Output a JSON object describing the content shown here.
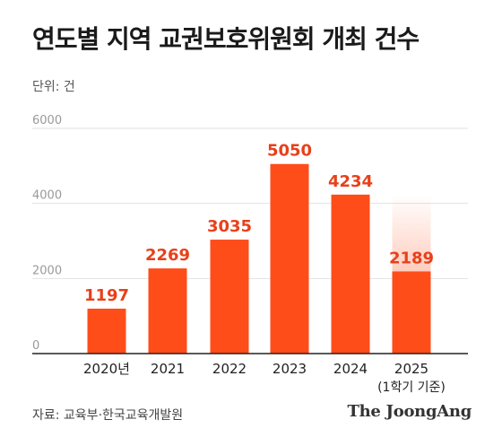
{
  "title": "연도별 지역 교권보호위원회 개최 건수",
  "unit_label": "단위: 건",
  "source": "자료: 교육부·한국교육개발원",
  "brand": "The JoongAng",
  "colors": {
    "bar": "#ff4d1a",
    "value_label": "#e8401a",
    "grid": "#e2e2e2",
    "axis": "#222222",
    "tick": "#999999"
  },
  "chart_data": {
    "type": "bar",
    "title": "연도별 지역 교권보호위원회 개최 건수",
    "ylabel": "단위: 건",
    "categories": [
      "2020년",
      "2021",
      "2022",
      "2023",
      "2024",
      "2025"
    ],
    "category_notes": [
      "",
      "",
      "",
      "",
      "",
      "(1학기 기준)"
    ],
    "values": [
      1197,
      2269,
      3035,
      5050,
      4234,
      2189
    ],
    "yticks": [
      0,
      2000,
      4000,
      6000
    ],
    "ylim": [
      0,
      6000
    ],
    "grid": true,
    "partial_last_bar": true
  }
}
